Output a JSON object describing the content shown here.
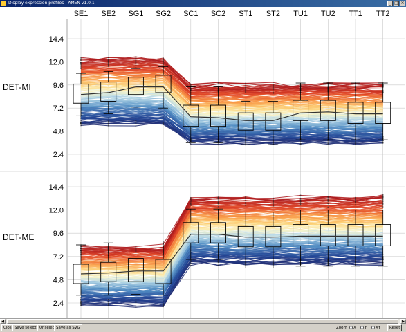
{
  "window": {
    "title": "Display expression profiles - AMEN v1.0.1",
    "minimize": "_",
    "maximize": "□",
    "close": "×"
  },
  "columns": [
    "SE1",
    "SE2",
    "SG1",
    "SG2",
    "SC1",
    "SC2",
    "ST1",
    "ST2",
    "TU1",
    "TU2",
    "TT1",
    "TT2"
  ],
  "panels": [
    {
      "label": "DET-MI",
      "ticks": [
        "14.4",
        "12.0",
        "9.6",
        "7.2",
        "4.8",
        "2.4"
      ],
      "tick_values": [
        14.4,
        12.0,
        9.6,
        7.2,
        4.8,
        2.4
      ],
      "ylim": [
        1.8,
        15.2
      ],
      "groups": [
        1,
        1,
        1,
        1,
        0,
        0,
        0,
        0,
        0,
        0,
        0,
        0
      ],
      "mean_profile": [
        8.6,
        8.8,
        9.4,
        9.4,
        6.3,
        6.2,
        5.9,
        5.9,
        6.7,
        6.8,
        6.6,
        6.6
      ],
      "boxes": [
        {
          "q1": 7.7,
          "q3": 9.7,
          "lo": 6.4,
          "hi": 10.8
        },
        {
          "q1": 7.9,
          "q3": 9.9,
          "lo": 6.6,
          "hi": 11.0
        },
        {
          "q1": 8.6,
          "q3": 10.4,
          "lo": 7.3,
          "hi": 11.3
        },
        {
          "q1": 8.8,
          "q3": 10.6,
          "lo": 7.2,
          "hi": 11.5
        },
        {
          "q1": 5.3,
          "q3": 7.5,
          "lo": 3.6,
          "hi": 9.4
        },
        {
          "q1": 5.3,
          "q3": 7.5,
          "lo": 3.6,
          "hi": 9.4
        },
        {
          "q1": 4.9,
          "q3": 6.7,
          "lo": 3.4,
          "hi": 7.9
        },
        {
          "q1": 4.9,
          "q3": 6.7,
          "lo": 3.4,
          "hi": 7.9
        },
        {
          "q1": 5.9,
          "q3": 8.0,
          "lo": 3.9,
          "hi": 9.8
        },
        {
          "q1": 5.9,
          "q3": 8.0,
          "lo": 3.9,
          "hi": 9.8
        },
        {
          "q1": 5.6,
          "q3": 7.8,
          "lo": 3.9,
          "hi": 9.8
        },
        {
          "q1": 5.6,
          "q3": 7.8,
          "lo": 3.9,
          "hi": 9.8
        }
      ]
    },
    {
      "label": "DET-ME",
      "ticks": [
        "14.4",
        "12.0",
        "9.6",
        "7.2",
        "4.8",
        "2.4"
      ],
      "tick_values": [
        14.4,
        12.0,
        9.6,
        7.2,
        4.8,
        2.4
      ],
      "ylim": [
        1.8,
        15.2
      ],
      "groups": [
        0,
        0,
        0,
        0,
        1,
        1,
        1,
        1,
        1,
        1,
        1,
        1
      ],
      "mean_profile": [
        5.4,
        5.5,
        5.7,
        5.7,
        9.5,
        9.5,
        9.2,
        9.2,
        9.3,
        9.3,
        9.3,
        9.3
      ],
      "boxes": [
        {
          "q1": 4.4,
          "q3": 6.4,
          "lo": 3.2,
          "hi": 8.4
        },
        {
          "q1": 4.6,
          "q3": 6.6,
          "lo": 3.2,
          "hi": 8.6
        },
        {
          "q1": 4.6,
          "q3": 7.0,
          "lo": 3.3,
          "hi": 8.8
        },
        {
          "q1": 4.4,
          "q3": 6.9,
          "lo": 3.2,
          "hi": 8.8
        },
        {
          "q1": 8.6,
          "q3": 10.7,
          "lo": 6.9,
          "hi": 12.1
        },
        {
          "q1": 8.6,
          "q3": 10.7,
          "lo": 6.9,
          "hi": 12.1
        },
        {
          "q1": 8.2,
          "q3": 10.3,
          "lo": 6.0,
          "hi": 11.8
        },
        {
          "q1": 8.2,
          "q3": 10.3,
          "lo": 6.0,
          "hi": 11.8
        },
        {
          "q1": 8.3,
          "q3": 10.5,
          "lo": 6.2,
          "hi": 12.0
        },
        {
          "q1": 8.3,
          "q3": 10.5,
          "lo": 6.2,
          "hi": 12.0
        },
        {
          "q1": 8.3,
          "q3": 10.5,
          "lo": 6.2,
          "hi": 12.0
        },
        {
          "q1": 8.3,
          "q3": 10.5,
          "lo": 6.2,
          "hi": 12.0
        }
      ]
    }
  ],
  "statusbar": {
    "close": "Close",
    "save_selection": "Save selection",
    "unselect": "Unselect",
    "save_svg": "Save as SVG",
    "zoom_label": "Zoom",
    "zoom_options": [
      "X",
      "Y",
      "XY"
    ],
    "reset": "Reset"
  },
  "colors": {
    "background": "#ffffff",
    "window_chrome": "#d4d0c8",
    "grid": "#c8c8c8",
    "box": "#000000",
    "mean_line": "#333333"
  },
  "chart_data": [
    {
      "type": "line",
      "title": "",
      "ylabel": "DET-MI",
      "categories": [
        "SE1",
        "SE2",
        "SG1",
        "SG2",
        "SC1",
        "SC2",
        "ST1",
        "ST2",
        "TU1",
        "TU2",
        "TT1",
        "TT2"
      ],
      "ylim": [
        1.8,
        15.2
      ],
      "grid": true,
      "series": [
        {
          "values": [
            8.6,
            8.8,
            9.4,
            9.4,
            6.3,
            6.2,
            5.9,
            5.9,
            6.7,
            6.8,
            6.6,
            6.6
          ]
        }
      ]
    },
    {
      "type": "line",
      "title": "",
      "ylabel": "DET-ME",
      "categories": [
        "SE1",
        "SE2",
        "SG1",
        "SG2",
        "SC1",
        "SC2",
        "ST1",
        "ST2",
        "TU1",
        "TU2",
        "TT1",
        "TT2"
      ],
      "ylim": [
        1.8,
        15.2
      ],
      "grid": true,
      "series": [
        {
          "values": [
            5.4,
            5.5,
            5.7,
            5.7,
            9.5,
            9.5,
            9.2,
            9.2,
            9.3,
            9.3,
            9.3,
            9.3
          ]
        }
      ]
    }
  ]
}
